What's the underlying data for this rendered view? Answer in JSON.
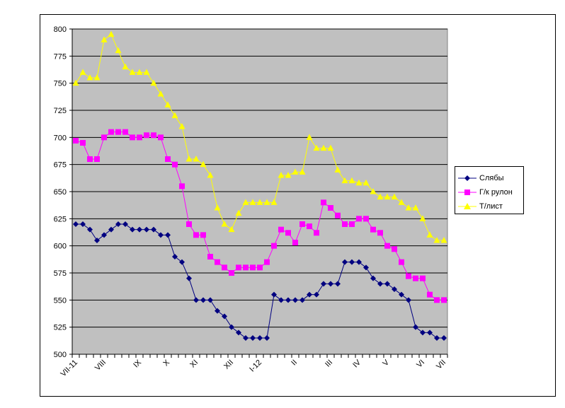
{
  "chart_data": {
    "type": "line",
    "title": "",
    "xlabel": "",
    "ylabel": "",
    "ylim": [
      500,
      800
    ],
    "yticks": [
      "500",
      "525",
      "550",
      "575",
      "600",
      "625",
      "650",
      "675",
      "700",
      "725",
      "750",
      "775",
      "800"
    ],
    "grid": true,
    "legend_position": "right",
    "plot_background": "#C0C0C0",
    "x_tick_labels": [
      {
        "label": "VII-11",
        "index": 0
      },
      {
        "label": "VIII",
        "index": 4
      },
      {
        "label": "IX",
        "index": 9
      },
      {
        "label": "X",
        "index": 13
      },
      {
        "label": "XI",
        "index": 17
      },
      {
        "label": "XII",
        "index": 22
      },
      {
        "label": "I-12",
        "index": 26
      },
      {
        "label": "II",
        "index": 31
      },
      {
        "label": "III",
        "index": 36
      },
      {
        "label": "IV",
        "index": 40
      },
      {
        "label": "V",
        "index": 44
      },
      {
        "label": "VI",
        "index": 49
      },
      {
        "label": "VII",
        "index": 52
      }
    ],
    "series": [
      {
        "name": "Слябы",
        "color": "#000080",
        "marker": "diamond",
        "values": [
          620,
          620,
          615,
          605,
          610,
          615,
          620,
          620,
          615,
          615,
          615,
          615,
          610,
          610,
          590,
          585,
          570,
          550,
          550,
          550,
          540,
          535,
          525,
          520,
          515,
          515,
          515,
          515,
          555,
          550,
          550,
          550,
          550,
          555,
          555,
          565,
          565,
          565,
          585,
          585,
          585,
          580,
          570,
          565,
          565,
          560,
          555,
          550,
          525,
          520,
          520,
          515,
          515
        ]
      },
      {
        "name": "Г/к рулон",
        "color": "#FF00FF",
        "marker": "square",
        "values": [
          697,
          695,
          680,
          680,
          700,
          705,
          705,
          705,
          700,
          700,
          702,
          702,
          700,
          680,
          675,
          655,
          620,
          610,
          610,
          590,
          585,
          580,
          575,
          580,
          580,
          580,
          580,
          585,
          600,
          615,
          612,
          603,
          620,
          618,
          612,
          640,
          635,
          628,
          620,
          620,
          625,
          625,
          615,
          612,
          600,
          597,
          585,
          572,
          570,
          570,
          555,
          550,
          550
        ]
      },
      {
        "name": "Т/лист",
        "color": "#FFFF00",
        "marker": "triangle",
        "values": [
          750,
          760,
          755,
          755,
          790,
          795,
          780,
          765,
          760,
          760,
          760,
          750,
          740,
          730,
          720,
          710,
          680,
          680,
          675,
          665,
          635,
          620,
          615,
          630,
          640,
          640,
          640,
          640,
          640,
          665,
          665,
          668,
          668,
          700,
          690,
          690,
          690,
          670,
          660,
          660,
          658,
          658,
          650,
          645,
          645,
          645,
          640,
          635,
          635,
          625,
          610,
          605,
          605
        ]
      }
    ]
  }
}
